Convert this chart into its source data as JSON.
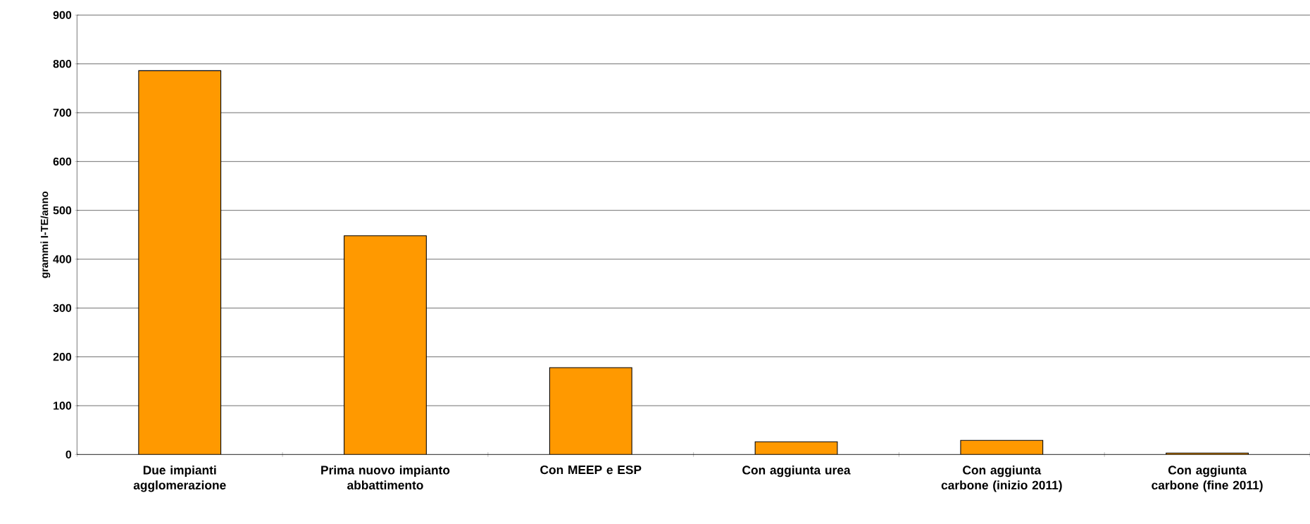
{
  "chart_data": {
    "type": "bar",
    "ylabel": "grammi I-TE/anno",
    "categories": [
      "Due impianti agglomerazione",
      "Prima nuovo impianto abbattimento",
      "Con MEEP e ESP",
      "Con aggiunta urea",
      "Con aggiunta carbone (inizio 2011)",
      "Con aggiunta carbone (fine 2011)"
    ],
    "values": [
      786,
      448,
      178,
      26,
      29,
      3
    ],
    "color": "#ff9900",
    "ylim": [
      0,
      900
    ],
    "yticks": [
      0,
      100,
      200,
      300,
      400,
      500,
      600,
      700,
      800,
      900
    ],
    "grid": "y"
  }
}
